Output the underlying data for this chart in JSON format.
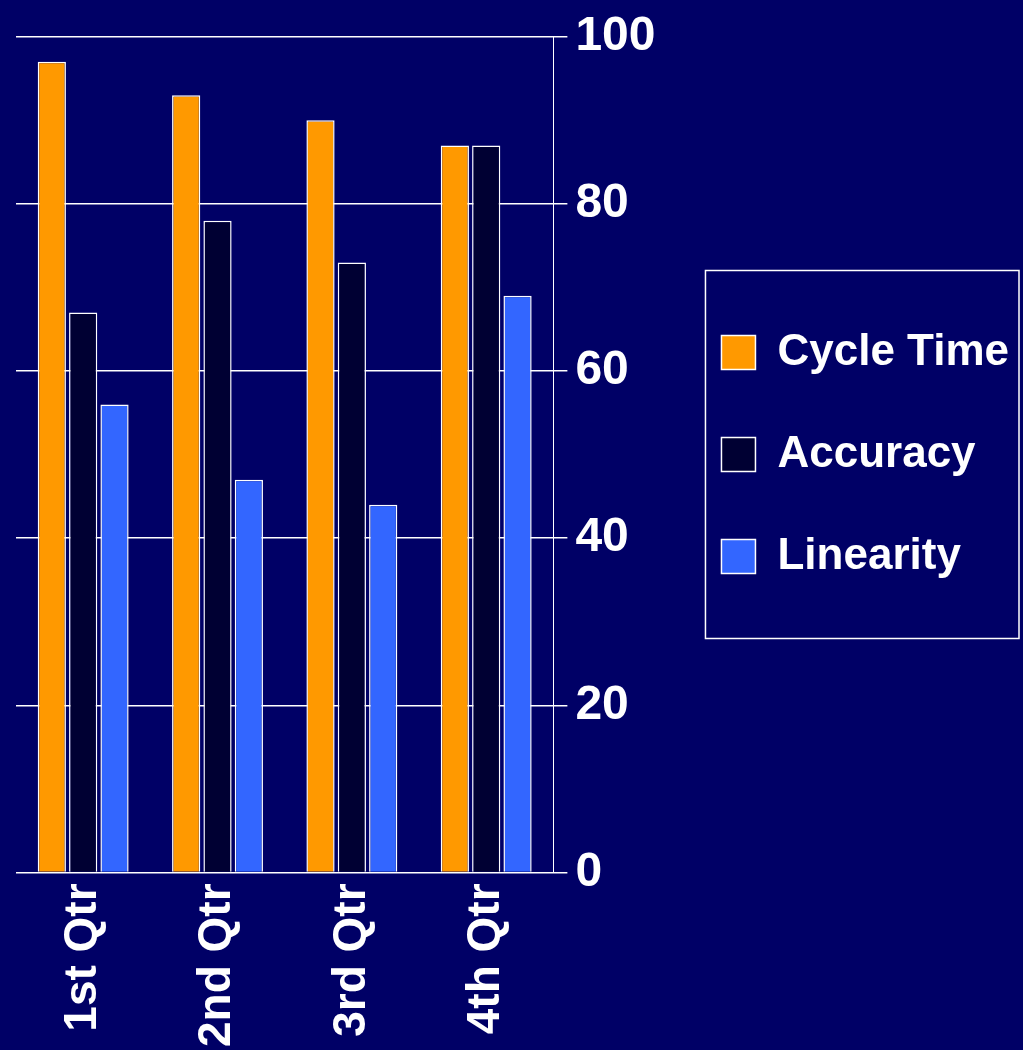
{
  "chart_data": {
    "type": "bar",
    "categories": [
      "1st Qtr",
      "2nd Qtr",
      "3rd Qtr",
      "4th Qtr"
    ],
    "series": [
      {
        "name": "Cycle Time",
        "color": "#ff9900",
        "values": [
          97,
          93,
          90,
          87
        ]
      },
      {
        "name": "Accuracy",
        "color": "#000033",
        "values": [
          67,
          78,
          73,
          87
        ]
      },
      {
        "name": "Linearity",
        "color": "#3366ff",
        "values": [
          56,
          47,
          44,
          69
        ]
      }
    ],
    "ylim": [
      0,
      100
    ],
    "yticks": [
      0,
      20,
      40,
      60,
      80,
      100
    ],
    "grid": "y",
    "legend": "right"
  }
}
